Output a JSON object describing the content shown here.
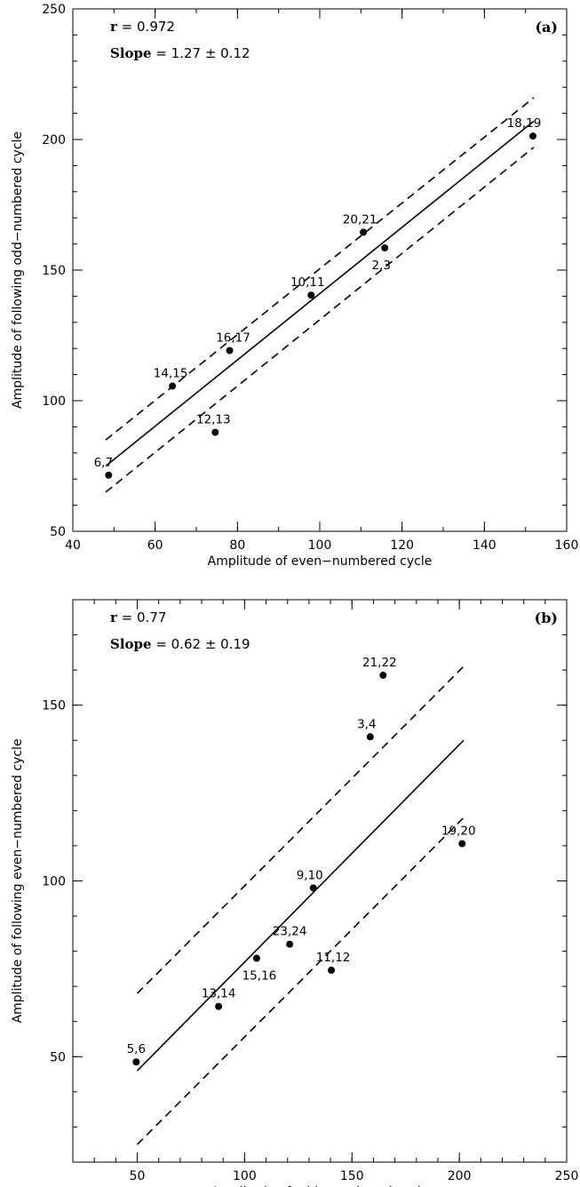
{
  "chart_data": [
    {
      "type": "scatter",
      "panel_label": "(a)",
      "stats": {
        "r_label": "r",
        "r_value": "= 0.972",
        "slope_label": "Slope",
        "slope_value": "= 1.27 ± 0.12"
      },
      "xlabel": "Amplitude of even−numbered cycle",
      "ylabel": "Amplitude of following odd−numbered cycle",
      "xlim": [
        40,
        160
      ],
      "ylim": [
        50,
        250
      ],
      "x_ticks": [
        40,
        60,
        80,
        100,
        120,
        140,
        160
      ],
      "y_ticks": [
        50,
        100,
        150,
        200,
        250
      ],
      "points": [
        {
          "label": "6,7",
          "x": 48.7,
          "y": 71.5
        },
        {
          "label": "14,15",
          "x": 64.2,
          "y": 105.6
        },
        {
          "label": "16,17",
          "x": 78.1,
          "y": 119.2
        },
        {
          "label": "12,13",
          "x": 74.6,
          "y": 87.9
        },
        {
          "label": "10,11",
          "x": 97.9,
          "y": 140.4
        },
        {
          "label": "20,21",
          "x": 110.6,
          "y": 164.5
        },
        {
          "label": "2,3",
          "x": 115.8,
          "y": 158.5
        },
        {
          "label": "18,19",
          "x": 151.8,
          "y": 201.3
        }
      ],
      "fit_line": {
        "x": [
          48,
          152
        ],
        "y": [
          75,
          207
        ]
      },
      "bound_upper": {
        "x": [
          48,
          152
        ],
        "y": [
          85,
          216
        ]
      },
      "bound_lower": {
        "x": [
          48,
          152
        ],
        "y": [
          65,
          197
        ]
      }
    },
    {
      "type": "scatter",
      "panel_label": "(b)",
      "stats": {
        "r_label": "r",
        "r_value": "= 0.77",
        "slope_label": "Slope",
        "slope_value": "= 0.62 ± 0.19"
      },
      "xlabel": "Amplitude of odd−numbered cycle",
      "ylabel": "Amplitude of following even−numbered cycle",
      "xlim": [
        20,
        250
      ],
      "ylim": [
        20,
        180
      ],
      "x_ticks": [
        50,
        100,
        150,
        200,
        250
      ],
      "y_ticks": [
        50,
        100,
        150
      ],
      "points": [
        {
          "label": "5,6",
          "x": 49.5,
          "y": 48.5
        },
        {
          "label": "13,14",
          "x": 87.9,
          "y": 64.3
        },
        {
          "label": "15,16",
          "x": 105.6,
          "y": 78.0
        },
        {
          "label": "23,24",
          "x": 121.0,
          "y": 82.0
        },
        {
          "label": "9,10",
          "x": 132.0,
          "y": 98.0
        },
        {
          "label": "11,12",
          "x": 140.4,
          "y": 74.6
        },
        {
          "label": "3,4",
          "x": 158.5,
          "y": 141.0
        },
        {
          "label": "21,22",
          "x": 164.5,
          "y": 158.5
        },
        {
          "label": "19,20",
          "x": 201.3,
          "y": 110.6
        }
      ],
      "fit_line": {
        "x": [
          50,
          202
        ],
        "y": [
          46,
          140
        ]
      },
      "bound_upper": {
        "x": [
          50,
          202
        ],
        "y": [
          68,
          161
        ]
      },
      "bound_lower": {
        "x": [
          50,
          202
        ],
        "y": [
          25,
          118
        ]
      }
    }
  ]
}
